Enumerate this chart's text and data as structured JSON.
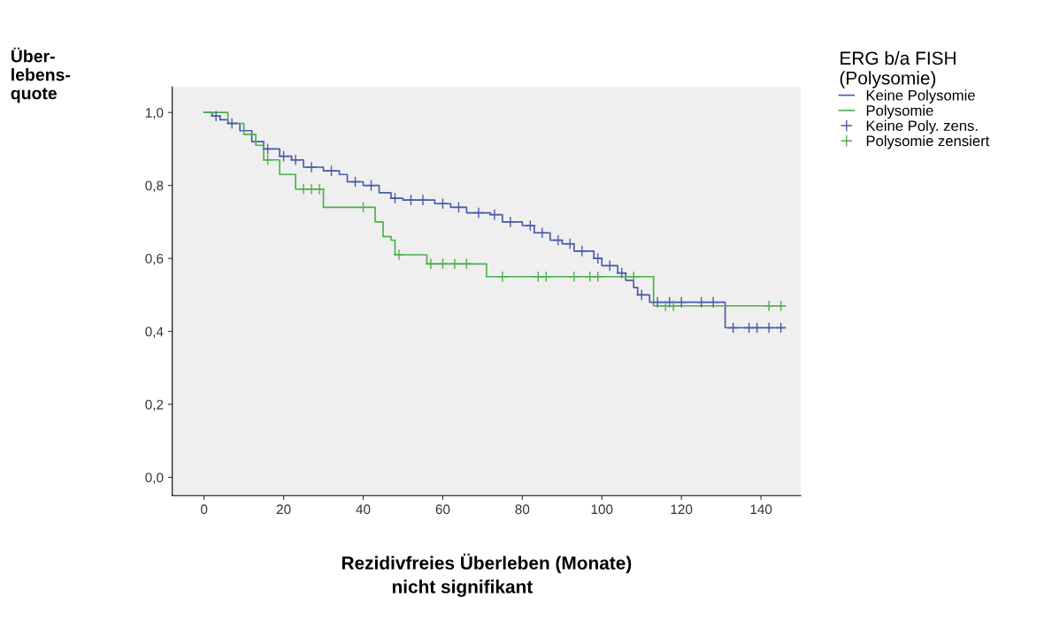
{
  "chart_data": {
    "type": "step",
    "xlabel": "Rezidivfreies Überleben (Monate)",
    "ylabel": "Über-\nlebens-\nquote",
    "legend_title": "ERG b/a FISH\n(Polysomie)",
    "annotations": [
      "nicht signifikant"
    ],
    "xlim": [
      -8,
      150
    ],
    "xticks": [
      0,
      20,
      40,
      60,
      80,
      100,
      120,
      140
    ],
    "ylim": [
      -0.05,
      1.07
    ],
    "yticks": [
      {
        "value": 0,
        "label": "0,0"
      },
      {
        "value": 0.2,
        "label": "0,2"
      },
      {
        "value": 0.4,
        "label": "0,4"
      },
      {
        "value": 0.6,
        "label": "0,6"
      },
      {
        "value": 0.8,
        "label": "0,8"
      },
      {
        "value": 1.0,
        "label": "1,0"
      }
    ],
    "grid": false,
    "legend": "right",
    "marker": "none",
    "line_style": "solid",
    "series": [
      {
        "name": "Keine Polysomie",
        "color": "#4a5aa8",
        "x": [
          0,
          2,
          4,
          6,
          9,
          12,
          15,
          19,
          22,
          25,
          30,
          34,
          36,
          40,
          44,
          47,
          50,
          58,
          62,
          66,
          72,
          75,
          80,
          83,
          87,
          90,
          93,
          98,
          100,
          104,
          106,
          108,
          109,
          112,
          131,
          146
        ],
        "values": [
          1.0,
          0.99,
          0.98,
          0.97,
          0.95,
          0.92,
          0.9,
          0.88,
          0.87,
          0.85,
          0.84,
          0.83,
          0.81,
          0.8,
          0.78,
          0.765,
          0.76,
          0.75,
          0.74,
          0.725,
          0.72,
          0.7,
          0.69,
          0.67,
          0.65,
          0.64,
          0.62,
          0.6,
          0.58,
          0.56,
          0.54,
          0.52,
          0.5,
          0.48,
          0.41,
          0.41
        ]
      },
      {
        "name": "Polysomie",
        "color": "#4fae4f",
        "x": [
          0,
          6,
          10,
          13,
          15,
          19,
          23,
          30,
          43,
          45,
          47,
          48,
          56,
          71,
          113,
          146
        ],
        "values": [
          1.0,
          0.97,
          0.94,
          0.91,
          0.87,
          0.83,
          0.79,
          0.74,
          0.7,
          0.66,
          0.65,
          0.61,
          0.585,
          0.55,
          0.47,
          0.47
        ]
      },
      {
        "name": "Keine Poly. zens.",
        "type": "scatter",
        "marker": "cross",
        "color": "#4a5aa8",
        "x": [
          3,
          7,
          16,
          20,
          23,
          27,
          32,
          38,
          42,
          48,
          52,
          55,
          60,
          64,
          69,
          73,
          77,
          82,
          85,
          89,
          92,
          95,
          99,
          102,
          105,
          110,
          114,
          117,
          120,
          125,
          128,
          133,
          137,
          139,
          142,
          145
        ],
        "values": [
          0.99,
          0.97,
          0.9,
          0.88,
          0.87,
          0.85,
          0.84,
          0.81,
          0.8,
          0.765,
          0.76,
          0.76,
          0.75,
          0.74,
          0.725,
          0.72,
          0.7,
          0.69,
          0.67,
          0.65,
          0.64,
          0.62,
          0.6,
          0.58,
          0.56,
          0.5,
          0.48,
          0.48,
          0.48,
          0.48,
          0.48,
          0.41,
          0.41,
          0.41,
          0.41,
          0.41
        ]
      },
      {
        "name": "Polysomie zensiert",
        "type": "scatter",
        "marker": "cross",
        "color": "#4fae4f",
        "x": [
          16,
          25,
          27,
          29,
          40,
          49,
          57,
          60,
          63,
          66,
          75,
          84,
          86,
          93,
          97,
          99,
          108,
          116,
          118,
          142,
          145
        ],
        "values": [
          0.87,
          0.79,
          0.79,
          0.79,
          0.74,
          0.61,
          0.585,
          0.585,
          0.585,
          0.585,
          0.55,
          0.55,
          0.55,
          0.55,
          0.55,
          0.55,
          0.55,
          0.47,
          0.47,
          0.47,
          0.47
        ]
      }
    ]
  }
}
